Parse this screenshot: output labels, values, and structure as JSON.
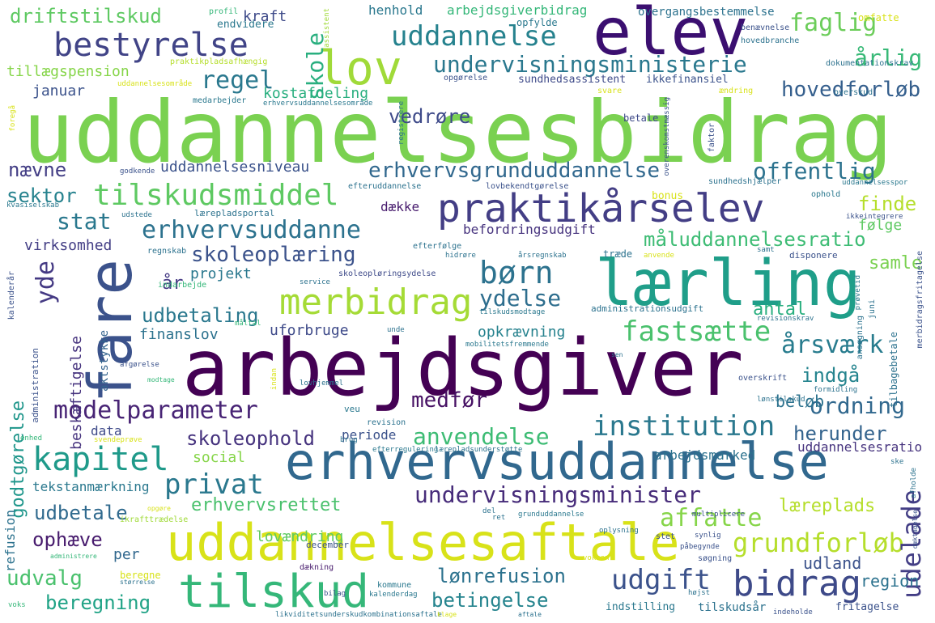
{
  "words": [
    {
      "text": "uddannelsesbidrag",
      "color": "#7ad151"
    },
    {
      "text": "arbejdsgiver",
      "color": "#440154"
    },
    {
      "text": "elev",
      "color": "#3b0f70"
    },
    {
      "text": "lærling",
      "color": "#1f9e89"
    },
    {
      "text": "fare",
      "color": "#3b528b"
    },
    {
      "text": "erhvervsuddannelse",
      "color": "#31688e"
    },
    {
      "text": "uddannelsesaftale",
      "color": "#d8e219"
    },
    {
      "text": "tilskud",
      "color": "#35b779"
    },
    {
      "text": "praktikårselev",
      "color": "#433e85"
    },
    {
      "text": "bestyrelse",
      "color": "#414487"
    },
    {
      "text": "lov",
      "color": "#a0da39"
    },
    {
      "text": "uddannelse",
      "color": "#26828e"
    },
    {
      "text": "undervisningsministerie",
      "color": "#2a788e"
    },
    {
      "text": "bidrag",
      "color": "#3e4a89"
    },
    {
      "text": "merbidrag",
      "color": "#a5db36"
    },
    {
      "text": "kapitel",
      "color": "#1f9a8a"
    },
    {
      "text": "tilskudsmiddel",
      "color": "#5ec962"
    },
    {
      "text": "erhvervsuddanne",
      "color": "#2c728e"
    },
    {
      "text": "skoleoplæring",
      "color": "#3b528b"
    },
    {
      "text": "institution",
      "color": "#2a788e"
    },
    {
      "text": "modelparameter",
      "color": "#482475"
    },
    {
      "text": "grundforløb",
      "color": "#b5de2b"
    },
    {
      "text": "undervisningsminister",
      "color": "#472c7a"
    },
    {
      "text": "børn",
      "color": "#2c728e"
    },
    {
      "text": "privat",
      "color": "#2a788e"
    },
    {
      "text": "fastsætte",
      "color": "#4ac16d"
    },
    {
      "text": "erhvervsgrunduddannelse",
      "color": "#31688e"
    },
    {
      "text": "affatte",
      "color": "#86d549"
    },
    {
      "text": "udelade",
      "color": "#433e85"
    },
    {
      "text": "udgift",
      "color": "#3b528b"
    },
    {
      "text": "ordning",
      "color": "#31688e"
    },
    {
      "text": "årsværk",
      "color": "#287c8e"
    },
    {
      "text": "regel",
      "color": "#2a788e"
    },
    {
      "text": "hovedforløb",
      "color": "#355f8d"
    },
    {
      "text": "offentlig",
      "color": "#2c728e"
    },
    {
      "text": "faglig",
      "color": "#6ccd5a"
    },
    {
      "text": "årlig",
      "color": "#38b977"
    },
    {
      "text": "skole",
      "color": "#29af7f"
    },
    {
      "text": "yde",
      "color": "#443983"
    },
    {
      "text": "ydelse",
      "color": "#2e6e8e"
    },
    {
      "text": "anvendelse",
      "color": "#3dbc74"
    },
    {
      "text": "udbetaling",
      "color": "#2a788e"
    },
    {
      "text": "måluddannelsesratio",
      "color": "#3dbc74"
    },
    {
      "text": "skoleophold",
      "color": "#46337e"
    },
    {
      "text": "betingelse",
      "color": "#25848e"
    },
    {
      "text": "lønrefusion",
      "color": "#2c728e"
    },
    {
      "text": "beregning",
      "color": "#20a386"
    },
    {
      "text": "udbetale",
      "color": "#306a8e"
    },
    {
      "text": "udvalg",
      "color": "#4ac16d"
    },
    {
      "text": "ophæve",
      "color": "#481c6e"
    },
    {
      "text": "driftstilskud",
      "color": "#5ec962"
    },
    {
      "text": "indgå",
      "color": "#25848e"
    },
    {
      "text": "herunder",
      "color": "#33638d"
    },
    {
      "text": "stat",
      "color": "#2a788e"
    },
    {
      "text": "finde",
      "color": "#b5de2b"
    },
    {
      "text": "sektor",
      "color": "#26828e"
    },
    {
      "text": "nævne",
      "color": "#433e85"
    },
    {
      "text": "vedrøre",
      "color": "#3e4a89"
    },
    {
      "text": "medfør",
      "color": "#471164"
    },
    {
      "text": "samle",
      "color": "#7ad151"
    },
    {
      "text": "antal",
      "color": "#29af7f"
    },
    {
      "text": "beløb",
      "color": "#2c728e"
    },
    {
      "text": "region",
      "color": "#2c728e"
    },
    {
      "text": "udland",
      "color": "#3b528b"
    },
    {
      "text": "læreplads",
      "color": "#b5de2b"
    },
    {
      "text": "lovændring",
      "color": "#5ec962"
    },
    {
      "text": "erhvervsrettet",
      "color": "#4ac16d"
    },
    {
      "text": "godtgørelse",
      "color": "#1f968b"
    },
    {
      "text": "beskæftigelse",
      "color": "#46337e"
    },
    {
      "text": "opkrævning",
      "color": "#26828e"
    },
    {
      "text": "uforbruge",
      "color": "#3e4a89"
    },
    {
      "text": "finanslov",
      "color": "#2c728e"
    },
    {
      "text": "virksomhed",
      "color": "#433e85"
    },
    {
      "text": "projekt",
      "color": "#2a788e"
    },
    {
      "text": "år",
      "color": "#443983"
    },
    {
      "text": "kostafdeling",
      "color": "#29af7f"
    },
    {
      "text": "januar",
      "color": "#3b528b"
    },
    {
      "text": "tillægspension",
      "color": "#86d549"
    },
    {
      "text": "kraft",
      "color": "#3e4a89"
    },
    {
      "text": "henhold",
      "color": "#2a788e"
    },
    {
      "text": "arbejdsgiverbidrag",
      "color": "#35b779"
    },
    {
      "text": "uddannelsesniveau",
      "color": "#3b528b"
    },
    {
      "text": "dække",
      "color": "#481c6e"
    },
    {
      "text": "befordringsudgift",
      "color": "#46337e"
    },
    {
      "text": "per",
      "color": "#31688e"
    },
    {
      "text": "social",
      "color": "#86d549"
    },
    {
      "text": "data",
      "color": "#3e4a89"
    },
    {
      "text": "periode",
      "color": "#3b528b"
    },
    {
      "text": "arbejdsmarked",
      "color": "#2c728e"
    },
    {
      "text": "uddannelsesratio",
      "color": "#46337e"
    },
    {
      "text": "tekstanmærkning",
      "color": "#2a788e"
    },
    {
      "text": "refusion",
      "color": "#2c728e"
    },
    {
      "text": "aktstykke",
      "color": "#33638d"
    },
    {
      "text": "følge",
      "color": "#5ec962"
    },
    {
      "text": "bonus",
      "color": "#d8e219"
    },
    {
      "text": "betale",
      "color": "#3e4a89"
    },
    {
      "text": "sundhedsassistent",
      "color": "#3e4a89"
    },
    {
      "text": "ikkefinansiel",
      "color": "#3b528b"
    },
    {
      "text": "overgangsbestemmelse",
      "color": "#2c728e"
    },
    {
      "text": "opfylde",
      "color": "#2a788e"
    },
    {
      "text": "endvidere",
      "color": "#2a788e"
    },
    {
      "text": "profil",
      "color": "#35b779"
    },
    {
      "text": "assistent",
      "color": "#a0da39"
    },
    {
      "text": "benævnelse",
      "color": "#3b528b"
    },
    {
      "text": "omfatte",
      "color": "#d8e219"
    },
    {
      "text": "hovedbranche",
      "color": "#2c728e"
    },
    {
      "text": "dokumentationskrav",
      "color": "#2c728e"
    },
    {
      "text": "overskud",
      "color": "#2c728e"
    },
    {
      "text": "praktikpladsafhængig",
      "color": "#b5de2b"
    },
    {
      "text": "uddannelsesområde",
      "color": "#d8e219"
    },
    {
      "text": "opgørelse",
      "color": "#3b528b"
    },
    {
      "text": "medarbejder",
      "color": "#2a788e"
    },
    {
      "text": "erhvervsuddannelsesområde",
      "color": "#2a788e"
    },
    {
      "text": "foregå",
      "color": "#d8e219"
    },
    {
      "text": "svare",
      "color": "#d8e219"
    },
    {
      "text": "ændring",
      "color": "#d8e219"
    },
    {
      "text": "registrere",
      "color": "#2c728e"
    },
    {
      "text": "overenskomstmæssig",
      "color": "#3b528b"
    },
    {
      "text": "faktor",
      "color": "#3b528b"
    },
    {
      "text": "godkende",
      "color": "#3b528b"
    },
    {
      "text": "efteruddannelse",
      "color": "#2c728e"
    },
    {
      "text": "lovbekendtgørelse",
      "color": "#3b528b"
    },
    {
      "text": "sundhedshjælper",
      "color": "#2c728e"
    },
    {
      "text": "uddannelsesspor",
      "color": "#2a788e"
    },
    {
      "text": "ophold",
      "color": "#2a788e"
    },
    {
      "text": "ikkeintegrere",
      "color": "#3b528b"
    },
    {
      "text": "kvasiselskab",
      "color": "#2a788e"
    },
    {
      "text": "udstede",
      "color": "#2c728e"
    },
    {
      "text": "lærepladsportal",
      "color": "#2c728e"
    },
    {
      "text": "efterfølge",
      "color": "#2c728e"
    },
    {
      "text": "hidrøre",
      "color": "#2c728e"
    },
    {
      "text": "årsregnskab",
      "color": "#2c728e"
    },
    {
      "text": "anvende",
      "color": "#d8e219"
    },
    {
      "text": "samt",
      "color": "#2c728e"
    },
    {
      "text": "træde",
      "color": "#2c728e"
    },
    {
      "text": "disponere",
      "color": "#3b528b"
    },
    {
      "text": "regnskab",
      "color": "#2c728e"
    },
    {
      "text": "indarbejde",
      "color": "#35b779"
    },
    {
      "text": "service",
      "color": "#2c728e"
    },
    {
      "text": "skoleopløringsydelse",
      "color": "#3e4a89"
    },
    {
      "text": "tilskudsmodtage",
      "color": "#2a788e"
    },
    {
      "text": "administrationsudgift",
      "color": "#2c728e"
    },
    {
      "text": "revisionskrav",
      "color": "#2c728e"
    },
    {
      "text": "prøvetid",
      "color": "#2a788e"
    },
    {
      "text": "juni",
      "color": "#2c728e"
    },
    {
      "text": "merbidragsfritagelse",
      "color": "#3b528b"
    },
    {
      "text": "tilbagebetale",
      "color": "#2c728e"
    },
    {
      "text": "ansøgning",
      "color": "#2c728e"
    },
    {
      "text": "kalenderår",
      "color": "#3b528b"
    },
    {
      "text": "måltal",
      "color": "#35b779"
    },
    {
      "text": "mobilitetsfremmende",
      "color": "#2a788e"
    },
    {
      "text": "unde",
      "color": "#2c728e"
    },
    {
      "text": "sen",
      "color": "#2c728e"
    },
    {
      "text": "overskrift",
      "color": "#3b528b"
    },
    {
      "text": "administration",
      "color": "#3b528b"
    },
    {
      "text": "afgørelse",
      "color": "#3b528b"
    },
    {
      "text": "indan",
      "color": "#d8e219"
    },
    {
      "text": "modtage",
      "color": "#35b779"
    },
    {
      "text": "lovhjemmel",
      "color": "#2c728e"
    },
    {
      "text": "veu",
      "color": "#2a788e"
    },
    {
      "text": "revision",
      "color": "#2c728e"
    },
    {
      "text": "lærepladsunderstøtte",
      "color": "#2c728e"
    },
    {
      "text": "efterregulering",
      "color": "#2a788e"
    },
    {
      "text": "brug",
      "color": "#2c728e"
    },
    {
      "text": "svendeprøve",
      "color": "#d8e219"
    },
    {
      "text": "enhed",
      "color": "#35b779"
    },
    {
      "text": "formidling",
      "color": "#2c728e"
    },
    {
      "text": "lønstilskud",
      "color": "#2c728e"
    },
    {
      "text": "ske",
      "color": "#2c728e"
    },
    {
      "text": "afholde",
      "color": "#2c728e"
    },
    {
      "text": "opgøre",
      "color": "#d8e219"
    },
    {
      "text": "ikrafttrædelse",
      "color": "#a0da39"
    },
    {
      "text": "december",
      "color": "#3b528b"
    },
    {
      "text": "del",
      "color": "#2c728e"
    },
    {
      "text": "ret",
      "color": "#2c728e"
    },
    {
      "text": "grunduddannelse",
      "color": "#2a788e"
    },
    {
      "text": "oplysning",
      "color": "#2c728e"
    },
    {
      "text": "multiplicere",
      "color": "#3b528b"
    },
    {
      "text": "stet",
      "color": "#3b528b"
    },
    {
      "text": "påbegynde",
      "color": "#3b528b"
    },
    {
      "text": "dæktagelse",
      "color": "#3b528b"
    },
    {
      "text": "administrere",
      "color": "#35b779"
    },
    {
      "text": "dækning",
      "color": "#481c6e"
    },
    {
      "text": "voksen",
      "color": "#d8e219"
    },
    {
      "text": "søgning",
      "color": "#3b528b"
    },
    {
      "text": "størrelse",
      "color": "#2c728e"
    },
    {
      "text": "bilag",
      "color": "#3b528b"
    },
    {
      "text": "kommune",
      "color": "#2a788e"
    },
    {
      "text": "kalenderdag",
      "color": "#2a788e"
    },
    {
      "text": "højst",
      "color": "#2c728e"
    },
    {
      "text": "voks",
      "color": "#35b779"
    },
    {
      "text": "likviditetsunderskudkombinationsaftale",
      "color": "#2c728e"
    },
    {
      "text": "klage",
      "color": "#d8e219"
    },
    {
      "text": "aftale",
      "color": "#2c728e"
    },
    {
      "text": "indstilling",
      "color": "#2a788e"
    },
    {
      "text": "tilskudsår",
      "color": "#2c728e"
    },
    {
      "text": "indeholde",
      "color": "#3b528b"
    },
    {
      "text": "fritagelse",
      "color": "#3b528b"
    },
    {
      "text": "synlig",
      "color": "#3b528b"
    },
    {
      "text": "beregne",
      "color": "#d8e219"
    }
  ]
}
